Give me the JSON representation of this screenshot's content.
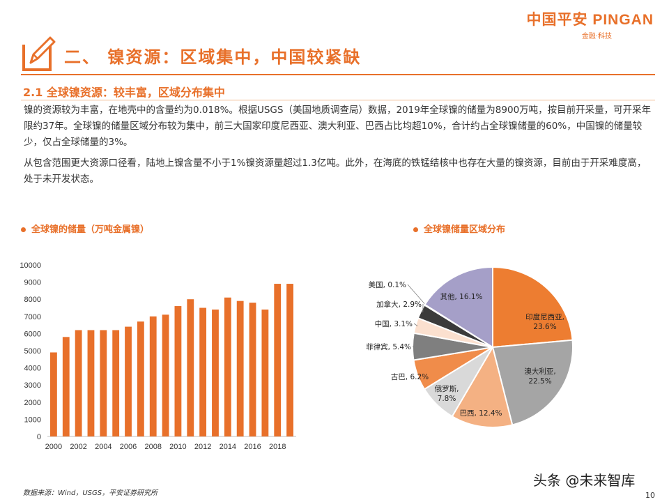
{
  "header": {
    "logo_text": "中国平安 PINGAN",
    "logo_sub": "金融·科技",
    "section_title": "二、 镍资源：区域集中，中国较紧缺",
    "subtitle": "2.1 全球镍资源：较丰富，区域分布集中"
  },
  "body": {
    "paragraph1": "镍的资源较为丰富，在地壳中的含量约为0.018%。根据USGS（美国地质调查局）数据，2019年全球镍的储量为8900万吨，按目前开采量，可开采年限约37年。全球镍的储量区域分布较为集中，前三大国家印度尼西亚、澳大利亚、巴西占比均超10%，合计约占全球镍储量的60%，中国镍的储量较少，仅占全球储量的3%。",
    "paragraph2": "从包含范围更大资源口径看，陆地上镍含量不小于1%镍资源量超过1.3亿吨。此外，在海底的铁锰结核中也存在大量的镍资源，目前由于开采难度高，处于未开发状态。"
  },
  "chart_titles": {
    "left": "全球镍的储量（万吨金属镍）",
    "right": "全球镍储量区域分布"
  },
  "chart_data": [
    {
      "type": "bar",
      "title": "全球镍的储量（万吨金属镍）",
      "x": [
        2000,
        2001,
        2002,
        2003,
        2004,
        2005,
        2006,
        2007,
        2008,
        2009,
        2010,
        2011,
        2012,
        2013,
        2014,
        2015,
        2016,
        2017,
        2018,
        2019
      ],
      "values": [
        4900,
        5800,
        6200,
        6200,
        6200,
        6200,
        6400,
        6700,
        7000,
        7100,
        7600,
        8000,
        7500,
        7400,
        8100,
        7900,
        7800,
        7400,
        8900,
        8900
      ],
      "xticks": [
        "2000",
        "2002",
        "2004",
        "2006",
        "2008",
        "2010",
        "2012",
        "2014",
        "2016",
        "2018"
      ],
      "yticks": [
        0,
        1000,
        2000,
        3000,
        4000,
        5000,
        6000,
        7000,
        8000,
        9000,
        10000
      ],
      "ylim": [
        0,
        10000
      ],
      "color": "#e8702a",
      "grid": false
    },
    {
      "type": "pie",
      "title": "全球镍储量区域分布",
      "slices": [
        {
          "label": "印度尼西亚,",
          "pct": "23.6%",
          "value": 23.6,
          "color": "#ed7d31"
        },
        {
          "label": "澳大利亚,",
          "pct": "22.5%",
          "value": 22.5,
          "color": "#a5a5a5"
        },
        {
          "label": "巴西, 12.4%",
          "value": 12.4,
          "color": "#f4b183"
        },
        {
          "label": "俄罗斯,",
          "pct": "7.8%",
          "value": 7.8,
          "color": "#d9d9d9"
        },
        {
          "label": "古巴, 6.2%",
          "value": 6.2,
          "color": "#f08c4a"
        },
        {
          "label": "菲律宾, 5.4%",
          "value": 5.4,
          "color": "#7f7f7f"
        },
        {
          "label": "中国, 3.1%",
          "value": 3.1,
          "color": "#fbe0cf"
        },
        {
          "label": "加拿大, 2.9%",
          "value": 2.9,
          "color": "#3b3b3b"
        },
        {
          "label": "美国, 0.1%",
          "value": 0.1,
          "color": "#d9d9d9"
        },
        {
          "label": "其他, 16.1%",
          "value": 16.1,
          "color": "#a59fc8"
        }
      ]
    }
  ],
  "footer": {
    "source": "数据来源：Wind，USGS，平安证券研究所",
    "watermark": "头条 @未来智库",
    "page_number": "10"
  }
}
